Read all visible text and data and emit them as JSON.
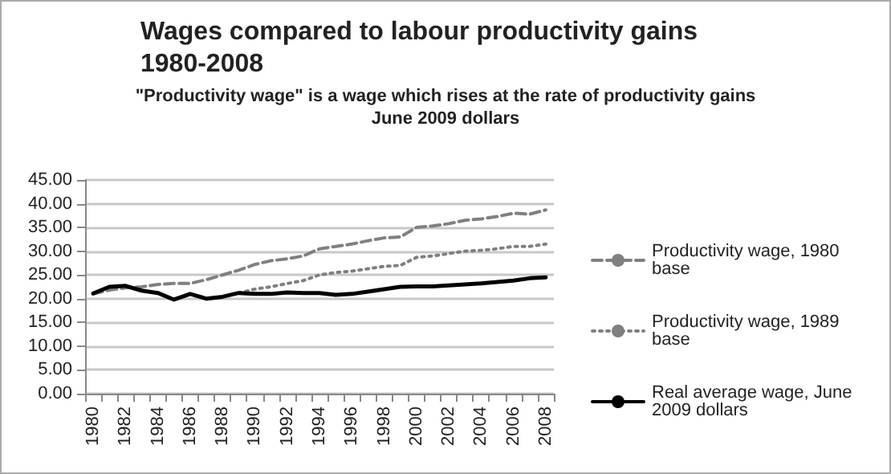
{
  "chart_data": {
    "type": "line",
    "title": "Wages compared to labour productivity gains 1980-2008",
    "subtitle": "\"Productivity wage\" is a wage which rises at the rate of productivity gains\nJune 2009 dollars",
    "categories": [
      "1980",
      null,
      "1982",
      null,
      "1984",
      null,
      "1986",
      null,
      "1988",
      null,
      "1990",
      null,
      "1992",
      null,
      "1994",
      null,
      "1996",
      null,
      "1998",
      null,
      "2000",
      null,
      "2002",
      null,
      "2004",
      null,
      "2006",
      null,
      "2008"
    ],
    "series": [
      {
        "name": "Productivity wage, 1980  base",
        "color": "#808080",
        "line_style": "dashed",
        "values": [
          21,
          21.8,
          22.3,
          22.5,
          23,
          23.2,
          23.2,
          24,
          25,
          26,
          27.2,
          28,
          28.4,
          29,
          30.5,
          31,
          31.5,
          32.2,
          32.8,
          33,
          35,
          35.3,
          35.8,
          36.5,
          36.8,
          37.3,
          38,
          37.8,
          38.7
        ]
      },
      {
        "name": "Productivity wage, 1989  base",
        "color": "#808080",
        "line_style": "dotted",
        "values": [
          null,
          null,
          null,
          null,
          null,
          null,
          null,
          null,
          null,
          21.2,
          22,
          22.5,
          23.2,
          23.8,
          25,
          25.5,
          25.8,
          26.3,
          26.8,
          27,
          28.7,
          29,
          29.5,
          30,
          30.2,
          30.5,
          31,
          31,
          31.5
        ]
      },
      {
        "name": "Real average wage, June 2009 dollars",
        "color": "#000000",
        "line_style": "solid",
        "values": [
          21.1,
          22.5,
          22.7,
          21.7,
          21.2,
          19.8,
          21,
          20,
          20.4,
          21.2,
          21,
          21,
          21.3,
          21.2,
          21.2,
          20.8,
          21,
          21.5,
          22,
          22.5,
          22.6,
          22.6,
          22.8,
          23,
          23.2,
          23.5,
          23.8,
          24.3,
          24.5
        ]
      }
    ],
    "ylim": [
      0,
      45
    ],
    "yticks": [
      {
        "value": 0,
        "label": "0.00"
      },
      {
        "value": 5,
        "label": "5.00"
      },
      {
        "value": 10,
        "label": "10.00"
      },
      {
        "value": 15,
        "label": "15.00"
      },
      {
        "value": 20,
        "label": "20.00"
      },
      {
        "value": 25,
        "label": "25.00"
      },
      {
        "value": 30,
        "label": "30.00"
      },
      {
        "value": 35,
        "label": "35.00"
      },
      {
        "value": 40,
        "label": "40.00"
      },
      {
        "value": 45,
        "label": "45.00"
      }
    ],
    "grid": "y",
    "legend": "right",
    "marker": "none"
  }
}
